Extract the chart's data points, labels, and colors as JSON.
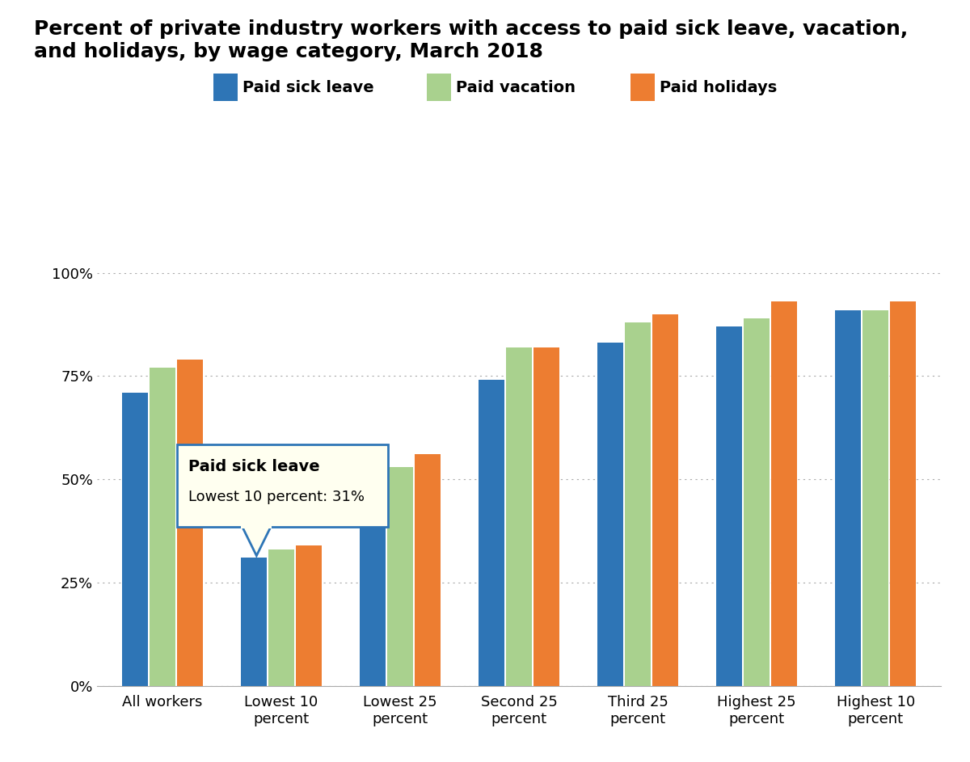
{
  "title_line1": "Percent of private industry workers with access to paid sick leave, vacation,",
  "title_line2": "and holidays, by wage category, March 2018",
  "categories": [
    "All workers",
    "Lowest 10\npercent",
    "Lowest 25\npercent",
    "Second 25\npercent",
    "Third 25\npercent",
    "Highest 25\npercent",
    "Highest 10\npercent"
  ],
  "series": {
    "Paid sick leave": [
      71,
      31,
      45,
      74,
      83,
      87,
      91
    ],
    "Paid vacation": [
      77,
      33,
      53,
      82,
      88,
      89,
      91
    ],
    "Paid holidays": [
      79,
      34,
      56,
      82,
      90,
      93,
      93
    ]
  },
  "colors": {
    "Paid sick leave": "#2E75B6",
    "Paid vacation": "#A9D18E",
    "Paid holidays": "#ED7D31"
  },
  "ylim": [
    0,
    107
  ],
  "yticks": [
    0,
    25,
    50,
    75,
    100
  ],
  "ytick_labels": [
    "0%",
    "25%",
    "50%",
    "75%",
    "100%"
  ],
  "background_color": "#FFFFFF",
  "title_fontsize": 18,
  "legend_fontsize": 14,
  "tick_fontsize": 13,
  "tooltip_title": "Paid sick leave",
  "tooltip_body": "Lowest 10 percent: 31%",
  "tooltip_border_color": "#2E75B6",
  "tooltip_bg_color": "#FFFFF0",
  "bar_width": 0.22
}
